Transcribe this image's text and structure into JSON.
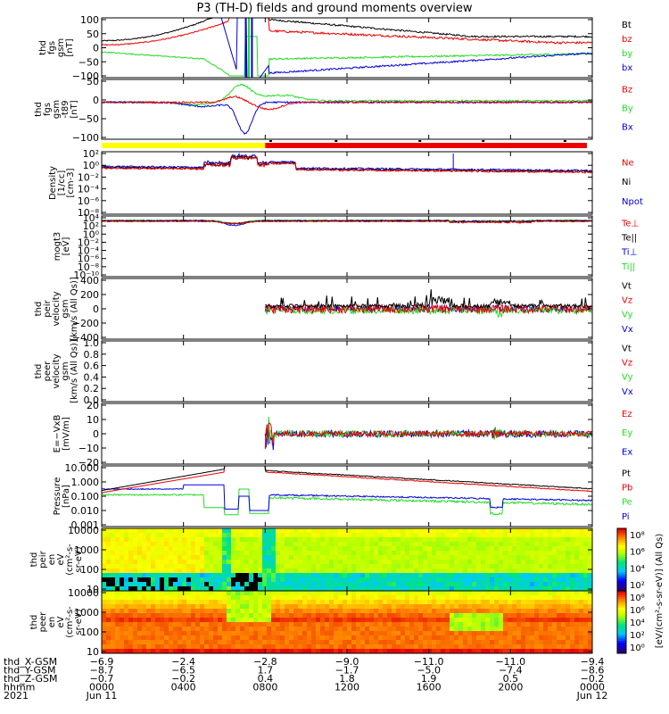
{
  "title": "P3 (TH-D) fields and ground moments overview",
  "colors": {
    "black": "#000000",
    "red": "#ee0000",
    "green": "#22dd22",
    "blue": "#0000dd",
    "yellow": "#ffff00"
  },
  "chart_data": [
    {
      "type": "line",
      "panel": "fgs_gsm",
      "ylabel": [
        "thd",
        "fgs",
        "gsm",
        "[nT]"
      ],
      "yticks": [
        "100",
        "50",
        "0",
        "−50",
        "−100"
      ],
      "ylim": [
        -100,
        100
      ],
      "series": [
        {
          "name": "Bt",
          "color": "#000000"
        },
        {
          "name": "bz",
          "color": "#ee0000"
        },
        {
          "name": "by",
          "color": "#22dd22"
        },
        {
          "name": "bx",
          "color": "#0000dd"
        }
      ]
    },
    {
      "type": "line",
      "panel": "fgs_gsm_t89",
      "ylabel": [
        "thd",
        "fgs",
        "gsm",
        "-t89",
        "[nT]"
      ],
      "yticks": [
        "50",
        "0",
        "−50",
        "−100"
      ],
      "ylim": [
        -125,
        75
      ],
      "series": [
        {
          "name": "Bz",
          "color": "#ee0000"
        },
        {
          "name": "By",
          "color": "#22dd22"
        },
        {
          "name": "Bx",
          "color": "#0000dd"
        }
      ]
    },
    {
      "type": "line",
      "panel": "density",
      "ylabel": [
        "Density",
        "[1/cc]",
        "[cm-3]"
      ],
      "yticks": [
        "10²",
        "10⁰",
        "10⁻²",
        "10⁻⁴",
        "10⁻⁶",
        "10⁻⁸"
      ],
      "log": true,
      "series": [
        {
          "name": "Ne",
          "color": "#ee0000"
        },
        {
          "name": "Ni",
          "color": "#000000"
        },
        {
          "name": "Npot",
          "color": "#0000dd"
        }
      ]
    },
    {
      "type": "line",
      "panel": "temperature",
      "ylabel": [
        "mogt3",
        "[eV]"
      ],
      "yticks": [
        "10⁴",
        "10²",
        "10⁰",
        "10⁻²",
        "10⁻⁴",
        "10⁻⁶",
        "10⁻⁸",
        "10⁻¹⁰"
      ],
      "log": true,
      "series": [
        {
          "name": "Te⊥",
          "color": "#ee0000"
        },
        {
          "name": "Te||",
          "color": "#000000"
        },
        {
          "name": "Ti⊥",
          "color": "#0000dd"
        },
        {
          "name": "Ti||",
          "color": "#22dd22"
        }
      ]
    },
    {
      "type": "line",
      "panel": "peir_velocity",
      "ylabel": [
        "thd",
        "peir",
        "velocity",
        "gsm",
        "[km/s (All Qs)]"
      ],
      "yticks": [
        "400",
        "200",
        "0",
        "−200",
        "−400"
      ],
      "ylim": [
        -400,
        400
      ],
      "series": [
        {
          "name": "Vt",
          "color": "#000000"
        },
        {
          "name": "Vz",
          "color": "#ee0000"
        },
        {
          "name": "Vy",
          "color": "#22dd22"
        },
        {
          "name": "Vx",
          "color": "#0000dd"
        }
      ]
    },
    {
      "type": "line",
      "panel": "peer_velocity",
      "ylabel": [
        "thd",
        "peer",
        "velocity",
        "gsm",
        "[km/s (All Qs)]"
      ],
      "yticks": [
        "1.0",
        "0.8",
        "0.6",
        "0.4",
        "0.2",
        "0.0"
      ],
      "ylim": [
        0,
        1
      ],
      "series": [
        {
          "name": "Vt",
          "color": "#000000"
        },
        {
          "name": "Vz",
          "color": "#ee0000"
        },
        {
          "name": "Vy",
          "color": "#22dd22"
        },
        {
          "name": "Vx",
          "color": "#0000dd"
        }
      ]
    },
    {
      "type": "line",
      "panel": "efield",
      "ylabel": [
        "E=−VxB",
        "[mV/m]"
      ],
      "yticks": [
        "20",
        "10",
        "0",
        "−10",
        "−20"
      ],
      "ylim": [
        -20,
        20
      ],
      "series": [
        {
          "name": "Ez",
          "color": "#ee0000"
        },
        {
          "name": "Ey",
          "color": "#22dd22"
        },
        {
          "name": "Ex",
          "color": "#0000dd"
        }
      ]
    },
    {
      "type": "line",
      "panel": "pressure",
      "ylabel": [
        "Pressure",
        "[nPa]"
      ],
      "yticks": [
        "10.000",
        "1.000",
        "0.100",
        "0.010",
        "0.001"
      ],
      "log": true,
      "series": [
        {
          "name": "Pt",
          "color": "#000000"
        },
        {
          "name": "Pb",
          "color": "#ee0000"
        },
        {
          "name": "Pe",
          "color": "#22dd22"
        },
        {
          "name": "Pi",
          "color": "#0000dd"
        }
      ]
    },
    {
      "type": "heatmap",
      "panel": "peir_spectrum",
      "ylabel": [
        "thd",
        "peir",
        "en",
        "eV",
        "(cm²-s-",
        "sr-eV)"
      ],
      "yticks": [
        "10000",
        "1000",
        "100",
        "10"
      ],
      "colorbar": {
        "ticks": [
          "10⁸",
          "10⁶",
          "10⁴",
          "10²"
        ]
      }
    },
    {
      "type": "heatmap",
      "panel": "peer_spectrum",
      "ylabel": [
        "thd",
        "peer",
        "en",
        "eV",
        "(cm²-s-",
        "sr-eV)"
      ],
      "yticks": [
        "10000",
        "1000",
        "100",
        "10"
      ],
      "colorbar": {
        "ticks": [
          "10⁸",
          "10⁶",
          "10⁴",
          "10²",
          "10⁰"
        ]
      }
    }
  ],
  "colorbar_label": "[eV/(cm²-s-sr-eV)] (All Qs)",
  "x_axis": {
    "rows": [
      {
        "label": "thd_X-GSM",
        "values": [
          "−6.9",
          "−2.4",
          "−2.8",
          "−9.0",
          "−11.0",
          "−11.0",
          "−9.4"
        ]
      },
      {
        "label": "thd_Y-GSM",
        "values": [
          "−8.7",
          "−6.5",
          "1.7",
          "−1.7",
          "−5.0",
          "−7.4",
          "−8.6"
        ]
      },
      {
        "label": "thd_Z-GSM",
        "values": [
          "−0.7",
          "−0.2",
          "0.4",
          "1.8",
          "1.9",
          "0.5",
          "−0.2"
        ]
      },
      {
        "label": "hhmm",
        "values": [
          "0000",
          "0400",
          "0800",
          "1200",
          "1600",
          "2000",
          "0000"
        ]
      },
      {
        "label": "2021",
        "values": [
          "Jun 11",
          "",
          "",
          "",
          "",
          "",
          "Jun 12"
        ]
      }
    ]
  }
}
